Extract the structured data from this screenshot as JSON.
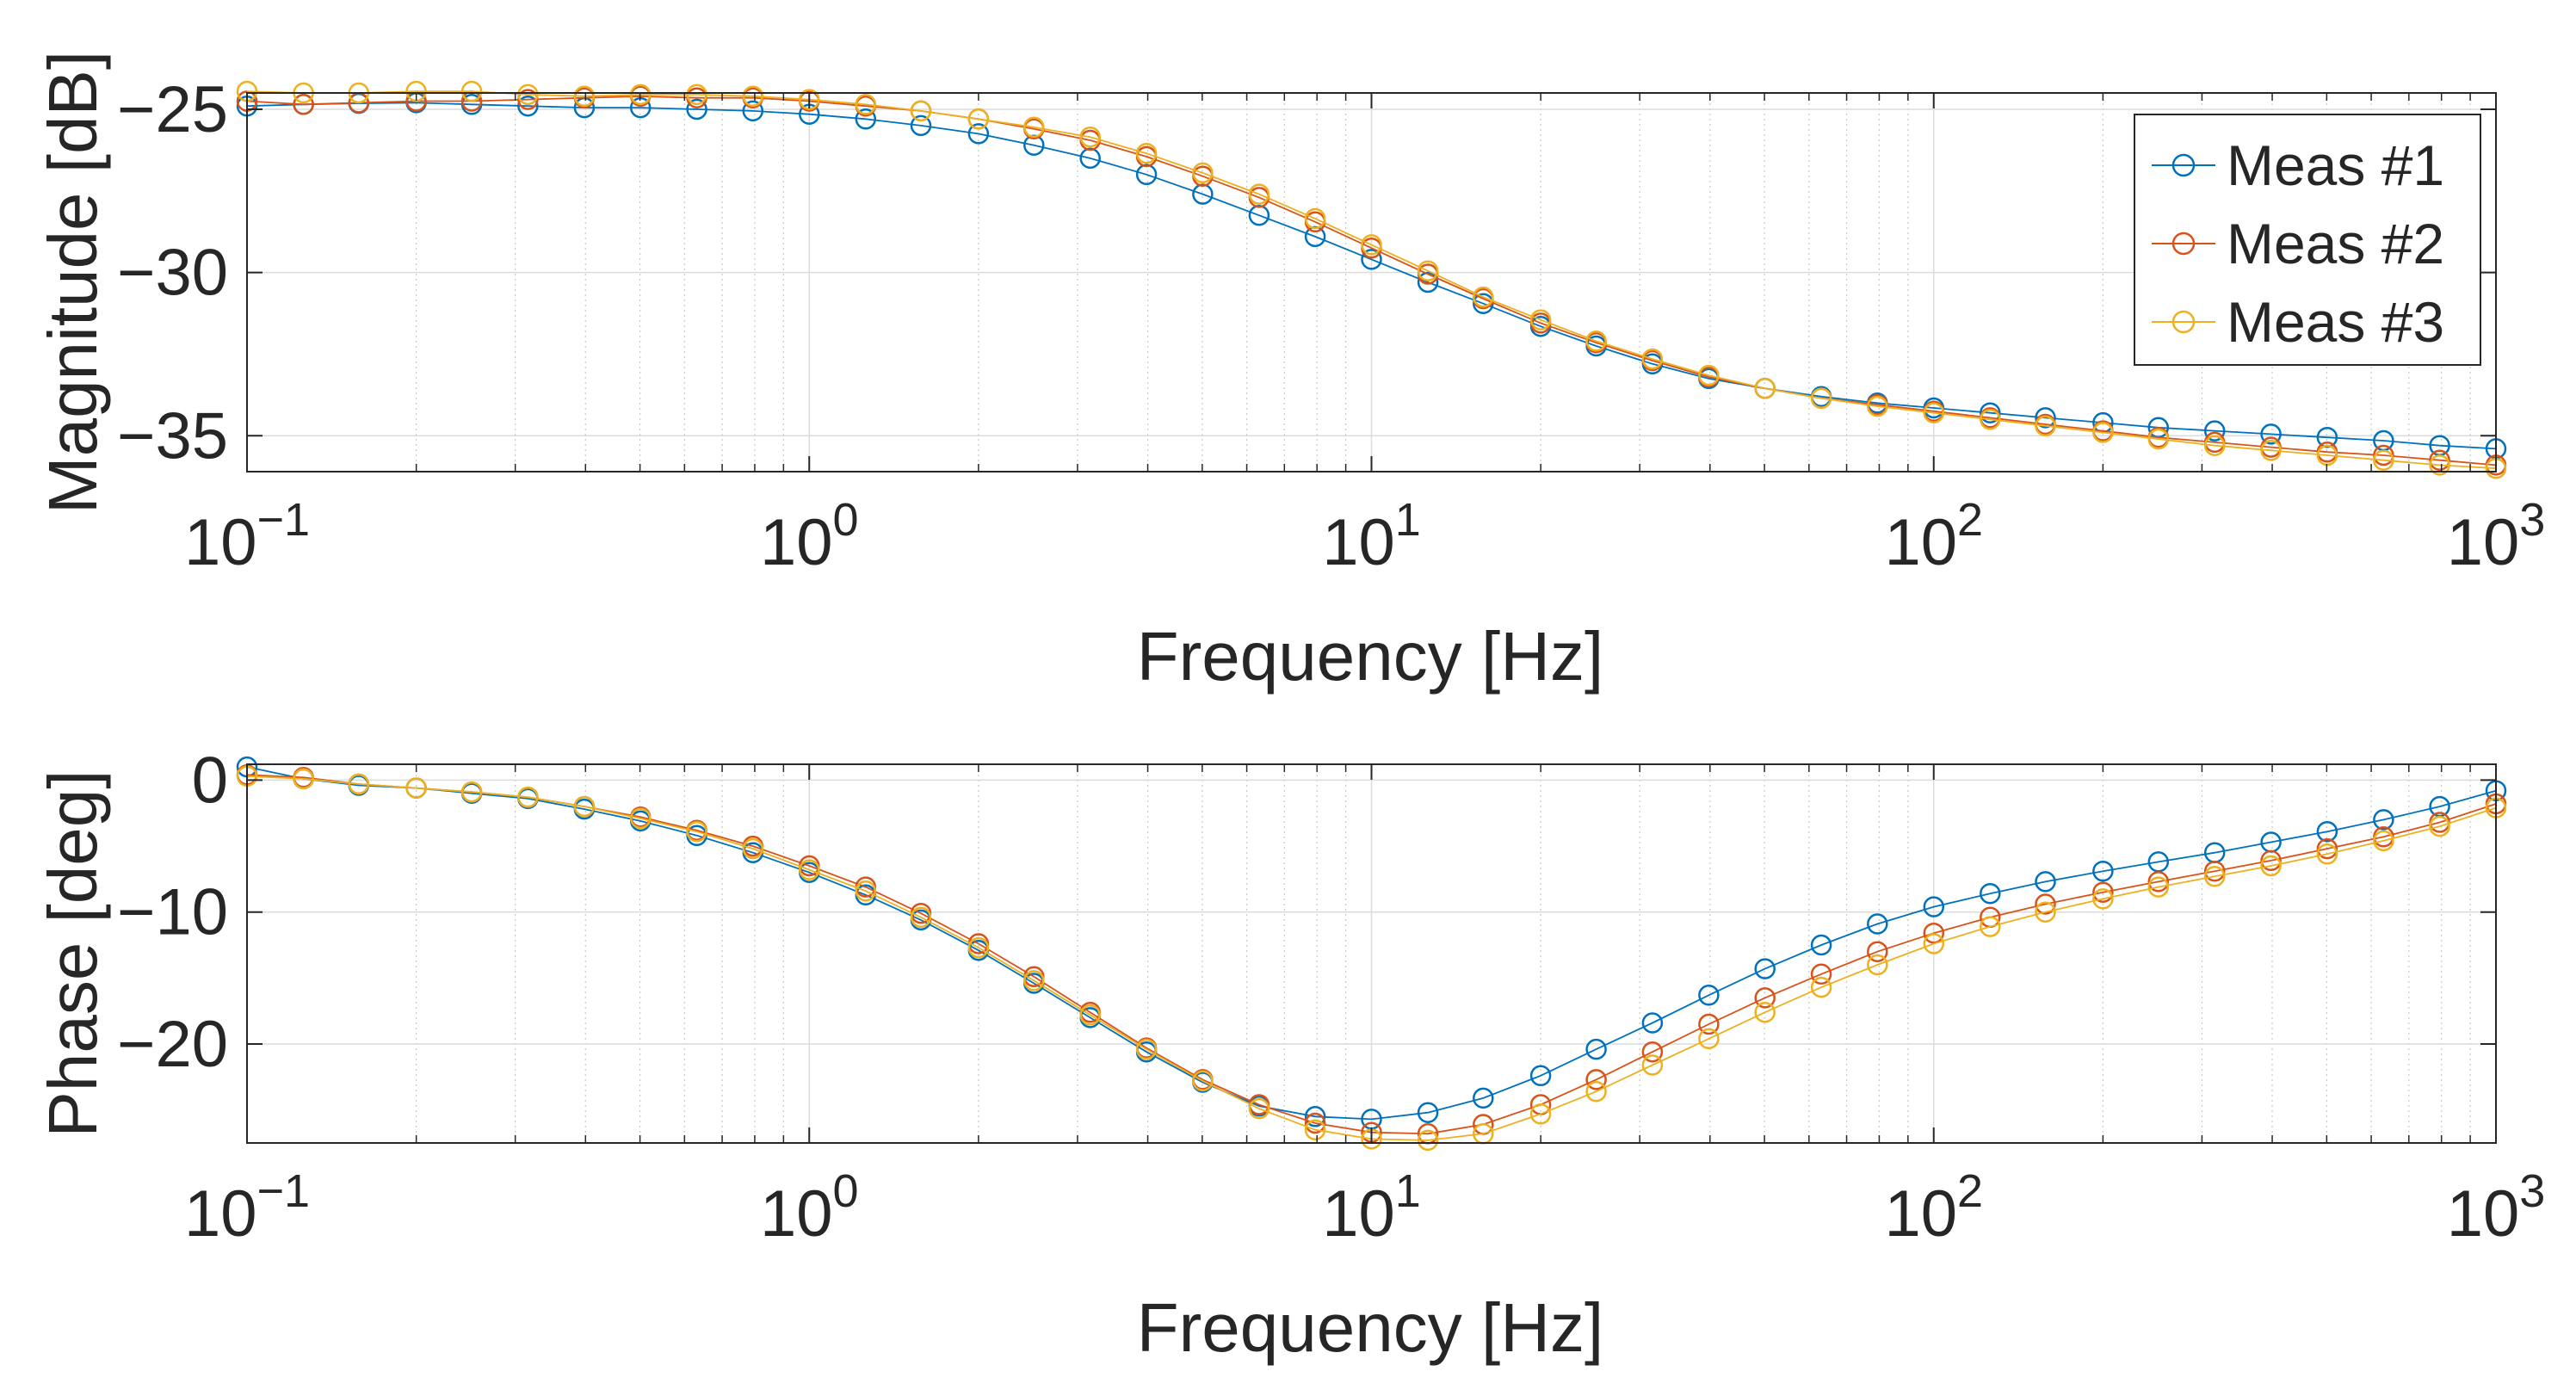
{
  "chart_data": [
    {
      "type": "line",
      "xscale": "log",
      "xlabel": "Frequency [Hz]",
      "ylabel": "Magnitude [dB]",
      "xlim": [
        0.1,
        1000
      ],
      "ylim": [
        -36.1,
        -24.5
      ],
      "yticks": [
        -35,
        -30,
        -25
      ],
      "ytick_labels": [
        "−35",
        "−30",
        "−25"
      ],
      "xticks": [
        {
          "value": 0.1,
          "base": "10",
          "exp": "−1"
        },
        {
          "value": 1,
          "base": "10",
          "exp": "0"
        },
        {
          "value": 10,
          "base": "10",
          "exp": "1"
        },
        {
          "value": 100,
          "base": "10",
          "exp": "2"
        },
        {
          "value": 1000,
          "base": "10",
          "exp": "3"
        }
      ],
      "grid": true,
      "legend": {
        "location": "top-right",
        "entries": [
          "Meas #1",
          "Meas #2",
          "Meas #3"
        ]
      },
      "series": [
        {
          "name": "Meas #1",
          "color": "#0072BD",
          "x": [
            0.1,
            0.126,
            0.158,
            0.2,
            0.251,
            0.316,
            0.398,
            0.501,
            0.631,
            0.794,
            1,
            1.26,
            1.58,
            2,
            2.51,
            3.16,
            3.98,
            5.01,
            6.31,
            7.94,
            10,
            12.6,
            15.8,
            20,
            25.1,
            31.6,
            39.8,
            50.1,
            63.1,
            79.4,
            100,
            126,
            158,
            200,
            251,
            316,
            398,
            501,
            631,
            794,
            1000
          ],
          "y": [
            -24.9,
            -24.85,
            -24.82,
            -24.8,
            -24.85,
            -24.9,
            -24.95,
            -24.95,
            -25.0,
            -25.05,
            -25.15,
            -25.3,
            -25.5,
            -25.75,
            -26.1,
            -26.5,
            -27.0,
            -27.6,
            -28.25,
            -28.9,
            -29.6,
            -30.3,
            -30.95,
            -31.65,
            -32.25,
            -32.8,
            -33.25,
            -33.55,
            -33.8,
            -34.0,
            -34.15,
            -34.3,
            -34.45,
            -34.6,
            -34.75,
            -34.85,
            -34.95,
            -35.05,
            -35.15,
            -35.3,
            -35.4
          ]
        },
        {
          "name": "Meas #2",
          "color": "#D95319",
          "x": [
            0.1,
            0.126,
            0.158,
            0.2,
            0.251,
            0.316,
            0.398,
            0.501,
            0.631,
            0.794,
            1,
            1.26,
            1.58,
            2,
            2.51,
            3.16,
            3.98,
            5.01,
            6.31,
            7.94,
            10,
            12.6,
            15.8,
            20,
            25.1,
            31.6,
            39.8,
            50.1,
            63.1,
            79.4,
            100,
            126,
            158,
            200,
            251,
            316,
            398,
            501,
            631,
            794,
            1000
          ],
          "y": [
            -24.75,
            -24.85,
            -24.8,
            -24.75,
            -24.75,
            -24.7,
            -24.65,
            -24.6,
            -24.65,
            -24.65,
            -24.75,
            -24.9,
            -25.05,
            -25.3,
            -25.6,
            -25.95,
            -26.45,
            -27.05,
            -27.7,
            -28.45,
            -29.25,
            -30.05,
            -30.8,
            -31.55,
            -32.15,
            -32.7,
            -33.2,
            -33.55,
            -33.85,
            -34.05,
            -34.25,
            -34.45,
            -34.65,
            -34.85,
            -35.05,
            -35.2,
            -35.35,
            -35.5,
            -35.6,
            -35.75,
            -35.9
          ]
        },
        {
          "name": "Meas #3",
          "color": "#EDB120",
          "x": [
            0.1,
            0.126,
            0.158,
            0.2,
            0.251,
            0.316,
            0.398,
            0.501,
            0.631,
            0.794,
            1,
            1.26,
            1.58,
            2,
            2.51,
            3.16,
            3.98,
            5.01,
            6.31,
            7.94,
            10,
            12.6,
            15.8,
            20,
            25.1,
            31.6,
            39.8,
            50.1,
            63.1,
            79.4,
            100,
            126,
            158,
            200,
            251,
            316,
            398,
            501,
            631,
            794,
            1000
          ],
          "y": [
            -24.45,
            -24.5,
            -24.5,
            -24.45,
            -24.45,
            -24.55,
            -24.6,
            -24.55,
            -24.55,
            -24.6,
            -24.7,
            -24.85,
            -25.05,
            -25.3,
            -25.55,
            -25.85,
            -26.35,
            -26.95,
            -27.6,
            -28.35,
            -29.15,
            -29.95,
            -30.75,
            -31.45,
            -32.1,
            -32.65,
            -33.15,
            -33.55,
            -33.85,
            -34.1,
            -34.3,
            -34.5,
            -34.7,
            -34.9,
            -35.1,
            -35.3,
            -35.45,
            -35.6,
            -35.75,
            -35.9,
            -36.0
          ]
        }
      ]
    },
    {
      "type": "line",
      "xscale": "log",
      "xlabel": "Frequency [Hz]",
      "ylabel": "Phase [deg]",
      "xlim": [
        0.1,
        1000
      ],
      "ylim": [
        -27.5,
        1.2
      ],
      "yticks": [
        -20,
        -10,
        0
      ],
      "ytick_labels": [
        "−20",
        "−10",
        "0"
      ],
      "xticks": [
        {
          "value": 0.1,
          "base": "10",
          "exp": "−1"
        },
        {
          "value": 1,
          "base": "10",
          "exp": "0"
        },
        {
          "value": 10,
          "base": "10",
          "exp": "1"
        },
        {
          "value": 100,
          "base": "10",
          "exp": "2"
        },
        {
          "value": 1000,
          "base": "10",
          "exp": "3"
        }
      ],
      "grid": true,
      "series": [
        {
          "name": "Meas #1",
          "color": "#0072BD",
          "x": [
            0.1,
            0.126,
            0.158,
            0.2,
            0.251,
            0.316,
            0.398,
            0.501,
            0.631,
            0.794,
            1,
            1.26,
            1.58,
            2,
            2.51,
            3.16,
            3.98,
            5.01,
            6.31,
            7.94,
            10,
            12.6,
            15.8,
            20,
            25.1,
            31.6,
            39.8,
            50.1,
            63.1,
            79.4,
            100,
            126,
            158,
            200,
            251,
            316,
            398,
            501,
            631,
            794,
            1000
          ],
          "y": [
            1.0,
            0.1,
            -0.4,
            -0.6,
            -1.0,
            -1.4,
            -2.2,
            -3.1,
            -4.2,
            -5.5,
            -7.0,
            -8.7,
            -10.6,
            -12.9,
            -15.4,
            -18.0,
            -20.6,
            -22.9,
            -24.7,
            -25.5,
            -25.7,
            -25.2,
            -24.1,
            -22.4,
            -20.4,
            -18.4,
            -16.3,
            -14.3,
            -12.5,
            -10.9,
            -9.6,
            -8.6,
            -7.7,
            -6.9,
            -6.2,
            -5.5,
            -4.7,
            -3.9,
            -3.0,
            -2.0,
            -0.8
          ]
        },
        {
          "name": "Meas #2",
          "color": "#D95319",
          "x": [
            0.1,
            0.126,
            0.158,
            0.2,
            0.251,
            0.316,
            0.398,
            0.501,
            0.631,
            0.794,
            1,
            1.26,
            1.58,
            2,
            2.51,
            3.16,
            3.98,
            5.01,
            6.31,
            7.94,
            10,
            12.6,
            15.8,
            20,
            25.1,
            31.6,
            39.8,
            50.1,
            63.1,
            79.4,
            100,
            126,
            158,
            200,
            251,
            316,
            398,
            501,
            631,
            794,
            1000
          ],
          "y": [
            0.4,
            0.2,
            -0.3,
            -0.6,
            -0.9,
            -1.3,
            -2.0,
            -2.8,
            -3.8,
            -5.0,
            -6.5,
            -8.1,
            -10.1,
            -12.4,
            -14.9,
            -17.6,
            -20.3,
            -22.7,
            -24.6,
            -26.0,
            -26.7,
            -26.8,
            -26.1,
            -24.6,
            -22.7,
            -20.6,
            -18.5,
            -16.5,
            -14.7,
            -13.0,
            -11.6,
            -10.4,
            -9.4,
            -8.5,
            -7.7,
            -6.9,
            -6.1,
            -5.2,
            -4.3,
            -3.2,
            -1.8
          ]
        },
        {
          "name": "Meas #3",
          "color": "#EDB120",
          "x": [
            0.1,
            0.126,
            0.158,
            0.2,
            0.251,
            0.316,
            0.398,
            0.501,
            0.631,
            0.794,
            1,
            1.26,
            1.58,
            2,
            2.51,
            3.16,
            3.98,
            5.01,
            6.31,
            7.94,
            10,
            12.6,
            15.8,
            20,
            25.1,
            31.6,
            39.8,
            50.1,
            63.1,
            79.4,
            100,
            126,
            158,
            200,
            251,
            316,
            398,
            501,
            631,
            794,
            1000
          ],
          "y": [
            0.3,
            0.1,
            -0.3,
            -0.6,
            -0.9,
            -1.3,
            -2.0,
            -2.9,
            -3.9,
            -5.2,
            -6.8,
            -8.4,
            -10.4,
            -12.7,
            -15.2,
            -17.8,
            -20.4,
            -22.8,
            -24.9,
            -26.5,
            -27.2,
            -27.3,
            -26.8,
            -25.3,
            -23.6,
            -21.6,
            -19.6,
            -17.6,
            -15.7,
            -14.0,
            -12.4,
            -11.1,
            -10.0,
            -9.0,
            -8.1,
            -7.3,
            -6.5,
            -5.6,
            -4.6,
            -3.5,
            -2.1
          ]
        }
      ]
    }
  ]
}
